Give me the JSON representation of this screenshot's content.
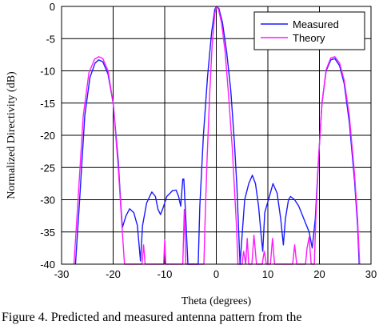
{
  "caption": "Figure 4. Predicted and measured antenna pattern from the",
  "chart_data": {
    "type": "line",
    "title": "",
    "xlabel": "Theta (degrees)",
    "ylabel": "Normalized Directivity (dB)",
    "xlim": [
      -30,
      30
    ],
    "ylim": [
      -40,
      0
    ],
    "xticks": [
      -30,
      -20,
      -10,
      0,
      10,
      20,
      30
    ],
    "yticks": [
      0,
      -5,
      -10,
      -15,
      -20,
      -25,
      -30,
      -35,
      -40
    ],
    "grid": true,
    "legend": {
      "position": "top-right"
    },
    "series": [
      {
        "name": "Measured",
        "color": "#1a1aff",
        "points": [
          [
            -27.3,
            -40
          ],
          [
            -26.5,
            -30
          ],
          [
            -25.5,
            -17
          ],
          [
            -24.5,
            -11
          ],
          [
            -23.5,
            -8.8
          ],
          [
            -22.8,
            -8.3
          ],
          [
            -22,
            -8.6
          ],
          [
            -21,
            -10.5
          ],
          [
            -20,
            -15
          ],
          [
            -19,
            -24
          ],
          [
            -18.5,
            -31
          ],
          [
            -18.2,
            -34.3
          ],
          [
            -17.5,
            -32.5
          ],
          [
            -16.8,
            -31.4
          ],
          [
            -16,
            -32
          ],
          [
            -15.3,
            -34
          ],
          [
            -14.7,
            -39.5
          ],
          [
            -14.3,
            -34
          ],
          [
            -13.5,
            -30.5
          ],
          [
            -12.5,
            -28.8
          ],
          [
            -11.8,
            -29.5
          ],
          [
            -11.3,
            -31.5
          ],
          [
            -10.8,
            -32.3
          ],
          [
            -10.3,
            -31.2
          ],
          [
            -9.6,
            -29.5
          ],
          [
            -8.5,
            -28.6
          ],
          [
            -7.8,
            -28.5
          ],
          [
            -7.3,
            -29.5
          ],
          [
            -6.9,
            -31
          ],
          [
            -6.5,
            -26.8
          ],
          [
            -6.3,
            -26.8
          ],
          [
            -5.9,
            -33
          ],
          [
            -5.5,
            -40
          ],
          [
            -3.5,
            -40
          ],
          [
            -3.2,
            -31
          ],
          [
            -2.5,
            -20
          ],
          [
            -1.7,
            -11
          ],
          [
            -0.9,
            -4
          ],
          [
            -0.3,
            -0.5
          ],
          [
            0,
            0
          ],
          [
            0.5,
            -0.3
          ],
          [
            1.2,
            -2.5
          ],
          [
            2,
            -7
          ],
          [
            2.8,
            -13
          ],
          [
            3.5,
            -21
          ],
          [
            4,
            -28
          ],
          [
            4.3,
            -34
          ],
          [
            4.6,
            -40
          ],
          [
            5,
            -35.5
          ],
          [
            5.5,
            -30
          ],
          [
            6.3,
            -27.5
          ],
          [
            7,
            -26.2
          ],
          [
            7.6,
            -27.5
          ],
          [
            8.2,
            -31
          ],
          [
            8.7,
            -35.5
          ],
          [
            9,
            -38
          ],
          [
            9.4,
            -32
          ],
          [
            10.3,
            -29.5
          ],
          [
            11,
            -27.5
          ],
          [
            11.8,
            -29
          ],
          [
            12.5,
            -33
          ],
          [
            13,
            -37
          ],
          [
            13.4,
            -33
          ],
          [
            14,
            -30
          ],
          [
            14.4,
            -29.5
          ],
          [
            15.2,
            -30
          ],
          [
            16,
            -31
          ],
          [
            17,
            -33
          ],
          [
            18,
            -35
          ],
          [
            18.6,
            -37.5
          ],
          [
            19.2,
            -33
          ],
          [
            19.8,
            -24
          ],
          [
            20.5,
            -15
          ],
          [
            21.3,
            -10
          ],
          [
            22.2,
            -8.3
          ],
          [
            23,
            -8.1
          ],
          [
            23.9,
            -9.2
          ],
          [
            24.8,
            -12
          ],
          [
            25.8,
            -18
          ],
          [
            26.8,
            -27
          ],
          [
            27.4,
            -34
          ],
          [
            27.7,
            -40
          ]
        ]
      },
      {
        "name": "Theory",
        "color": "#ff1aff",
        "points": [
          [
            -27.6,
            -40
          ],
          [
            -26.8,
            -30
          ],
          [
            -25.8,
            -17
          ],
          [
            -24.7,
            -10.3
          ],
          [
            -23.6,
            -8.2
          ],
          [
            -22.8,
            -7.8
          ],
          [
            -22,
            -8.1
          ],
          [
            -21,
            -10
          ],
          [
            -20,
            -15
          ],
          [
            -19,
            -25
          ],
          [
            -18.3,
            -34
          ],
          [
            -17.8,
            -40
          ],
          [
            -14.4,
            -40
          ],
          [
            -14.1,
            -37
          ],
          [
            -13.8,
            -40
          ],
          [
            -10.2,
            -40
          ],
          [
            -10,
            -36.2
          ],
          [
            -9.8,
            -40
          ],
          [
            -6.5,
            -40
          ],
          [
            -6.2,
            -31.5
          ],
          [
            -5.9,
            -40
          ],
          [
            -2.4,
            -40
          ],
          [
            -2.2,
            -34
          ],
          [
            -1.8,
            -24
          ],
          [
            -1.3,
            -14
          ],
          [
            -0.8,
            -6
          ],
          [
            -0.3,
            -1.2
          ],
          [
            0,
            0
          ],
          [
            0.4,
            -0.4
          ],
          [
            1,
            -2.5
          ],
          [
            1.7,
            -7
          ],
          [
            2.4,
            -14
          ],
          [
            3.1,
            -22
          ],
          [
            3.5,
            -28
          ],
          [
            3.9,
            -34
          ],
          [
            4.2,
            -40
          ],
          [
            5,
            -40
          ],
          [
            5.3,
            -38
          ],
          [
            5.7,
            -40
          ],
          [
            6,
            -36
          ],
          [
            6.3,
            -40
          ],
          [
            6.9,
            -40
          ],
          [
            7.3,
            -35.5
          ],
          [
            7.8,
            -40
          ],
          [
            8.9,
            -40
          ],
          [
            9.3,
            -38
          ],
          [
            9.7,
            -40
          ],
          [
            10.5,
            -40
          ],
          [
            10.9,
            -36
          ],
          [
            11.3,
            -40
          ],
          [
            14.8,
            -40
          ],
          [
            15.2,
            -37
          ],
          [
            15.6,
            -40
          ],
          [
            17.3,
            -40
          ],
          [
            17.6,
            -37.5
          ],
          [
            18,
            -35.8
          ],
          [
            18.4,
            -40
          ],
          [
            19,
            -40
          ],
          [
            19.3,
            -33
          ],
          [
            19.8,
            -24
          ],
          [
            20.5,
            -15
          ],
          [
            21.3,
            -9.8
          ],
          [
            22.2,
            -8
          ],
          [
            23,
            -7.8
          ],
          [
            23.9,
            -8.8
          ],
          [
            24.8,
            -11.5
          ],
          [
            25.8,
            -17
          ],
          [
            26.8,
            -26
          ],
          [
            27.4,
            -33
          ],
          [
            27.8,
            -40
          ]
        ]
      }
    ]
  }
}
